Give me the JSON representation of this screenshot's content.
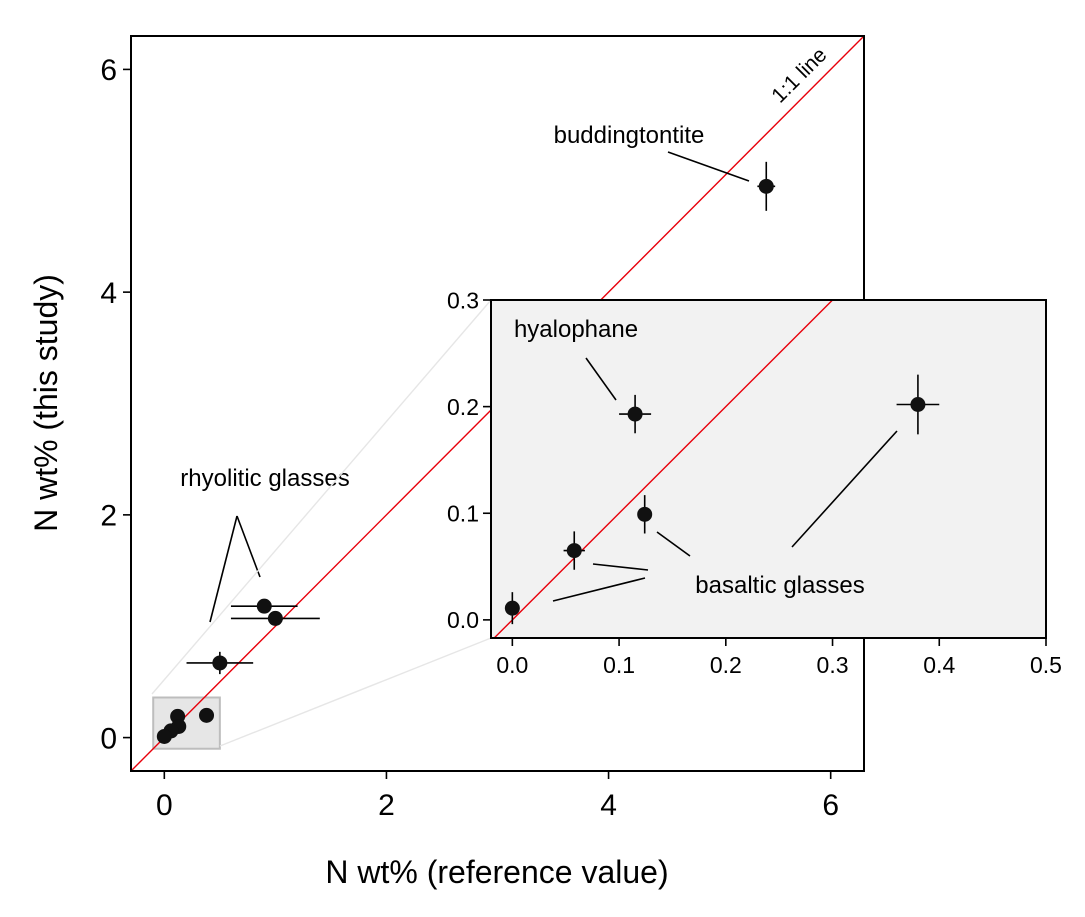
{
  "chart_data": [
    {
      "type": "scatter",
      "title": "",
      "xlabel": "N wt% (reference value)",
      "ylabel": "N wt% (this study)",
      "xlim": [
        -0.3,
        6.3
      ],
      "ylim": [
        -0.3,
        6.3
      ],
      "xticks": [
        "0",
        "2",
        "4",
        "6"
      ],
      "yticks": [
        "0",
        "2",
        "4",
        "6"
      ],
      "xtick_values": [
        0,
        2,
        4,
        6
      ],
      "ytick_values": [
        0,
        2,
        4,
        6
      ],
      "grid": false,
      "reference_line": {
        "label": "1:1 line",
        "color": "#e8000b"
      },
      "points": [
        {
          "x": 5.42,
          "y": 4.95,
          "xerr": 0.08,
          "yerr": 0.22
        },
        {
          "x": 0.9,
          "y": 1.18,
          "xerr": 0.3,
          "yerr": 0.0
        },
        {
          "x": 1.0,
          "y": 1.07,
          "xerr": 0.4,
          "yerr": 0.0
        },
        {
          "x": 0.5,
          "y": 0.67,
          "xerr": 0.3,
          "yerr": 0.1
        },
        {
          "x": 0.38,
          "y": 0.2,
          "xerr": 0.0,
          "yerr": 0.0
        },
        {
          "x": 0.12,
          "y": 0.19,
          "xerr": 0.0,
          "yerr": 0.0
        },
        {
          "x": 0.13,
          "y": 0.1,
          "xerr": 0.0,
          "yerr": 0.0
        },
        {
          "x": 0.06,
          "y": 0.06,
          "xerr": 0.0,
          "yerr": 0.0
        },
        {
          "x": 0.0,
          "y": 0.01,
          "xerr": 0.0,
          "yerr": 0.0
        }
      ],
      "zoom_box": {
        "x0": -0.1,
        "x1": 0.5,
        "y0": -0.1,
        "y1": 0.36,
        "color": "#e6e6e6"
      },
      "annotations": [
        {
          "text": "buddingtontite",
          "anchor_x": 5.42,
          "anchor_y": 4.95
        },
        {
          "text": "rhyolitic glasses",
          "anchor_x": 0.9,
          "anchor_y": 1.1
        }
      ]
    },
    {
      "type": "scatter",
      "title": "",
      "xlabel": "",
      "ylabel": "",
      "xlim": [
        -0.02,
        0.5
      ],
      "ylim": [
        -0.017,
        0.3
      ],
      "xticks": [
        "0.0",
        "0.1",
        "0.2",
        "0.3",
        "0.4",
        "0.5"
      ],
      "yticks": [
        "0.0",
        "0.1",
        "0.2",
        "0.3"
      ],
      "xtick_values": [
        0.0,
        0.1,
        0.2,
        0.3,
        0.4,
        0.5
      ],
      "ytick_values": [
        0.0,
        0.1,
        0.2,
        0.3
      ],
      "background": "#f2f2f2",
      "grid": false,
      "points": [
        {
          "x": 0.115,
          "y": 0.193,
          "xerr": 0.015,
          "yerr": 0.018
        },
        {
          "x": 0.38,
          "y": 0.202,
          "xerr": 0.02,
          "yerr": 0.028
        },
        {
          "x": 0.124,
          "y": 0.099,
          "xerr": 0.0,
          "yerr": 0.018
        },
        {
          "x": 0.058,
          "y": 0.065,
          "xerr": 0.01,
          "yerr": 0.018
        },
        {
          "x": 0.0,
          "y": 0.011,
          "xerr": 0.0,
          "yerr": 0.015
        }
      ],
      "annotations": [
        {
          "text": "hyalophane"
        },
        {
          "text": "basaltic glasses"
        }
      ]
    }
  ]
}
